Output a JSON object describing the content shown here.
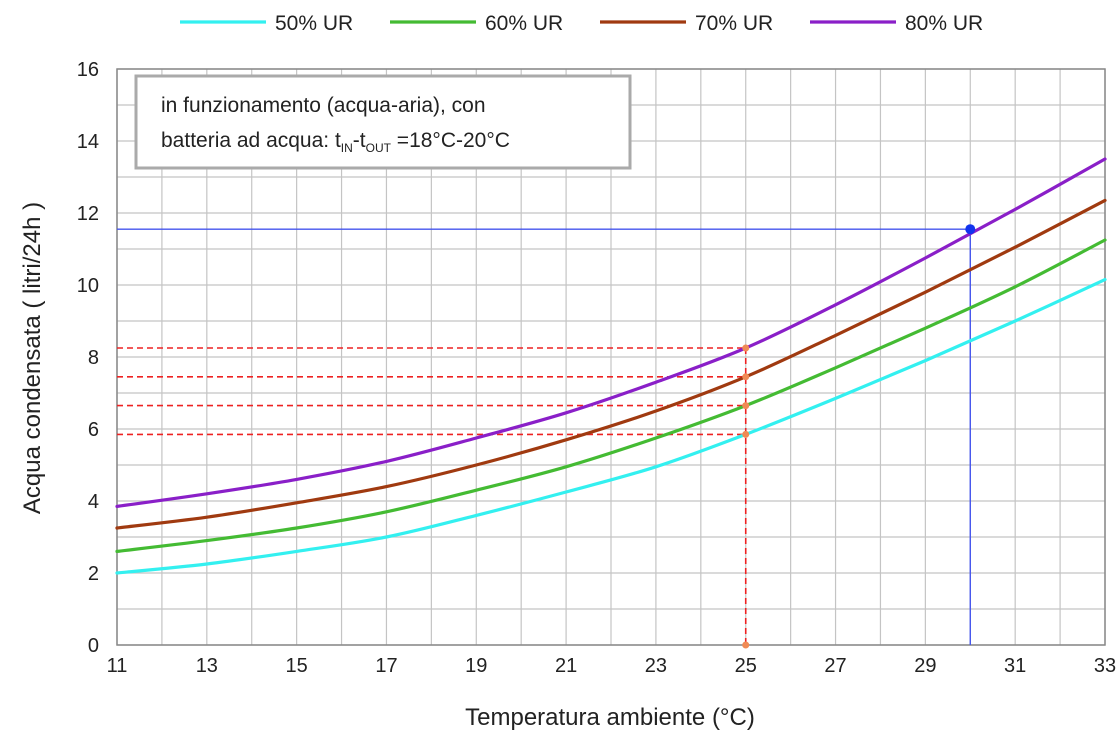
{
  "chart_data": {
    "type": "line",
    "xlabel": "Temperatura ambiente (°C)",
    "ylabel": "Acqua condensata ( litri/24h )",
    "xlim": [
      11,
      33
    ],
    "ylim": [
      0,
      16
    ],
    "x_ticks": [
      "11",
      "13",
      "15",
      "17",
      "19",
      "21",
      "23",
      "25",
      "27",
      "29",
      "31",
      "33"
    ],
    "y_ticks": [
      "0",
      "2",
      "4",
      "6",
      "8",
      "10",
      "12",
      "14",
      "16"
    ],
    "grid": true,
    "legend_position": "top",
    "annotation": {
      "line1": "in funzionamento (acqua-aria), con",
      "line2_prefix": "batteria ad acqua: t",
      "sub_in": "IN",
      "dash": "-t",
      "sub_out": "OUT",
      "line2_suffix": " =18°C-20°C"
    },
    "series": [
      {
        "name": "50% UR",
        "color": "#33f0f0",
        "x": [
          11,
          13,
          15,
          17,
          19,
          21,
          23,
          25,
          27,
          29,
          31,
          33
        ],
        "values": [
          2.0,
          2.25,
          2.6,
          3.0,
          3.6,
          4.25,
          4.95,
          5.85,
          6.85,
          7.9,
          9.0,
          10.15
        ]
      },
      {
        "name": "60% UR",
        "color": "#44bb33",
        "x": [
          11,
          13,
          15,
          17,
          19,
          21,
          23,
          25,
          27,
          29,
          31,
          33
        ],
        "values": [
          2.6,
          2.9,
          3.25,
          3.7,
          4.3,
          4.95,
          5.75,
          6.65,
          7.7,
          8.8,
          9.95,
          11.25
        ]
      },
      {
        "name": "70% UR",
        "color": "#a03a10",
        "x": [
          11,
          13,
          15,
          17,
          19,
          21,
          23,
          25,
          27,
          29,
          31,
          33
        ],
        "values": [
          3.25,
          3.55,
          3.95,
          4.4,
          5.0,
          5.7,
          6.5,
          7.45,
          8.6,
          9.8,
          11.05,
          12.35
        ]
      },
      {
        "name": "80% UR",
        "color": "#8a1fc8",
        "x": [
          11,
          13,
          15,
          17,
          19,
          21,
          23,
          25,
          27,
          29,
          31,
          33
        ],
        "values": [
          3.85,
          4.2,
          4.6,
          5.1,
          5.75,
          6.45,
          7.3,
          8.25,
          9.45,
          10.75,
          12.1,
          13.5
        ]
      }
    ],
    "reference_lines": {
      "red_x": 25,
      "red_y": [
        5.85,
        6.65,
        7.45,
        8.25
      ],
      "red_color": "#ee2222",
      "blue_x": 30,
      "blue_y": 11.55,
      "blue_color": "#4455ee"
    }
  }
}
